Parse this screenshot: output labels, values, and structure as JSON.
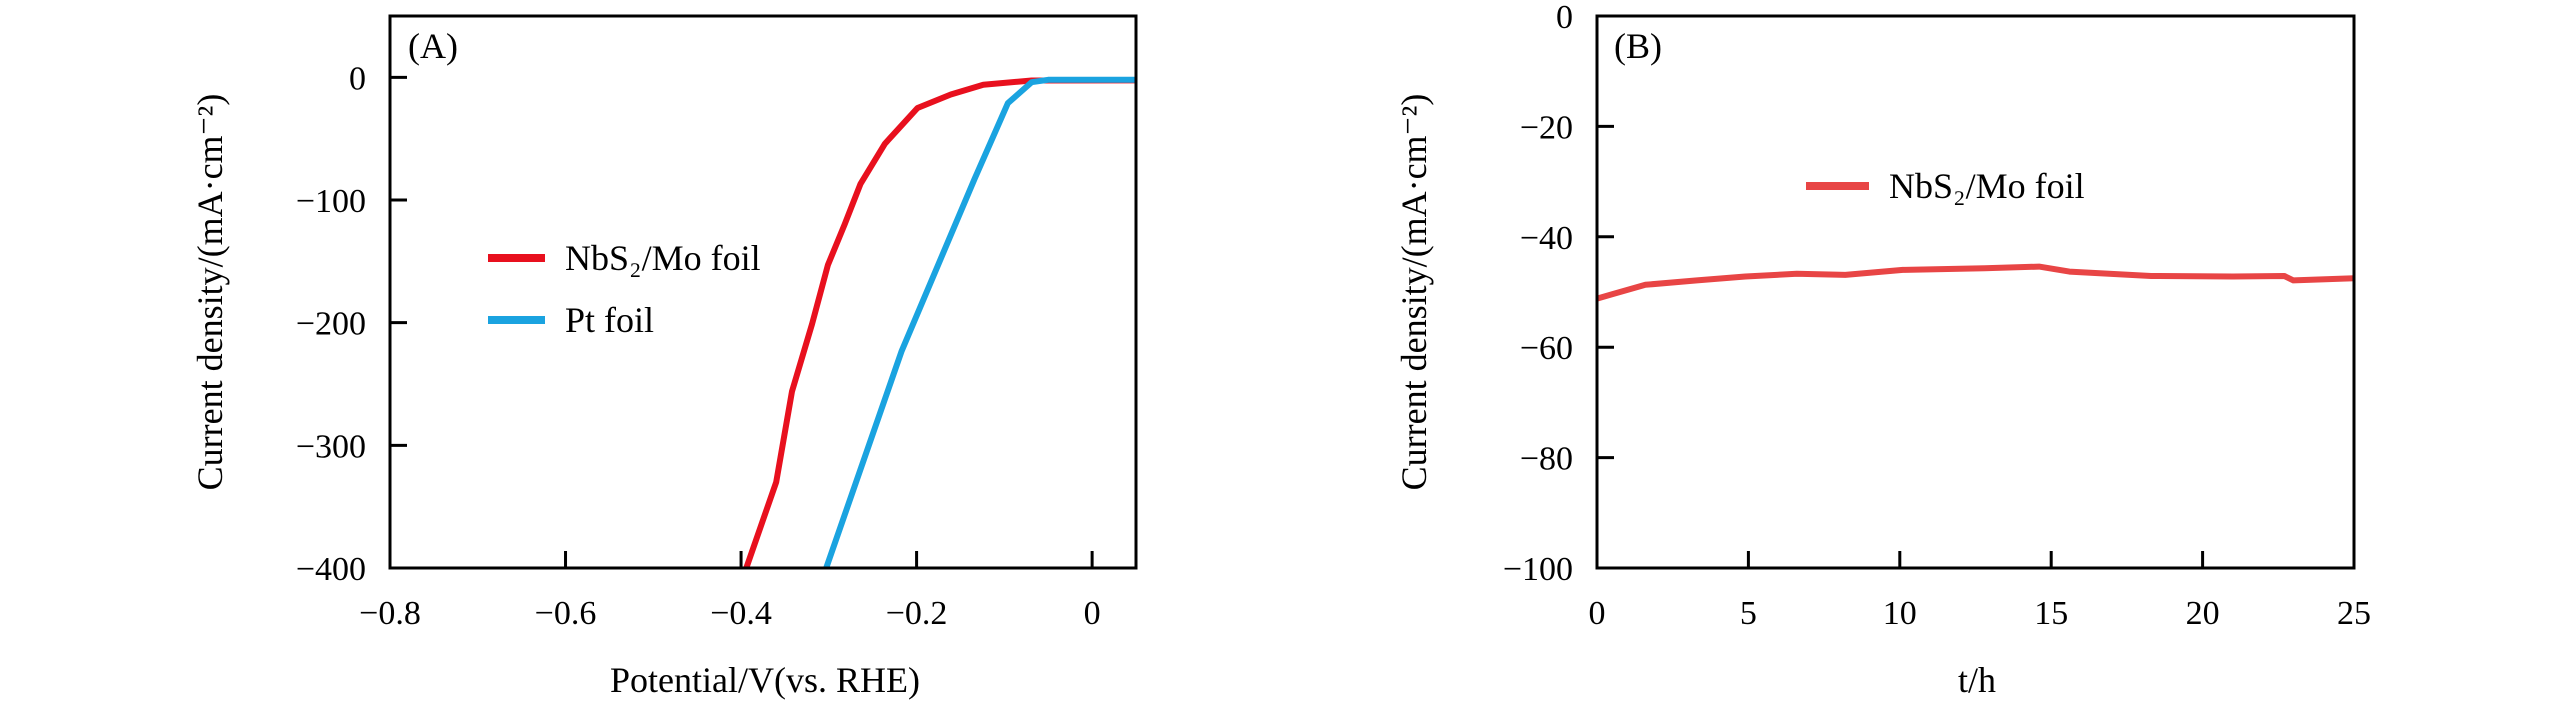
{
  "chart_data": [
    {
      "type": "line",
      "panel_label": "(A)",
      "xlabel": "Potential/V(vs. RHE)",
      "ylabel": "Current density/(mA·cm⁻²)",
      "xlim": [
        -0.8,
        0.05
      ],
      "ylim": [
        -400,
        50
      ],
      "xticks": [
        -0.8,
        -0.6,
        -0.4,
        -0.2,
        0
      ],
      "xtick_labels": [
        "−0.8",
        "−0.6",
        "−0.4",
        "−0.2",
        "0"
      ],
      "yticks": [
        0,
        -100,
        -200,
        -300,
        -400
      ],
      "ytick_labels": [
        "0",
        "−100",
        "−200",
        "−300",
        "−400"
      ],
      "legend_position": "center-left",
      "series": [
        {
          "name": "NbS₂/Mo foil",
          "color": "#e8101e",
          "x": [
            -0.394,
            -0.36,
            -0.342,
            -0.319,
            -0.301,
            -0.282,
            -0.264,
            -0.236,
            -0.199,
            -0.161,
            -0.124,
            -0.069,
            0.05
          ],
          "y": [
            -400,
            -330,
            -256,
            -201,
            -153,
            -120,
            -87,
            -54,
            -25,
            -14,
            -6,
            -2.6,
            -2.5
          ]
        },
        {
          "name": "Pt foil",
          "color": "#1aa3e0",
          "x": [
            -0.303,
            -0.217,
            -0.134,
            -0.096,
            -0.069,
            -0.05,
            0.05
          ],
          "y": [
            -400,
            -223,
            -83,
            -21,
            -4,
            -2,
            -2
          ]
        }
      ]
    },
    {
      "type": "line",
      "panel_label": "(B)",
      "xlabel": "t/h",
      "ylabel": "Current density/(mA·cm⁻²)",
      "xlim": [
        0,
        25
      ],
      "ylim": [
        -100,
        0
      ],
      "xticks": [
        0,
        5,
        10,
        15,
        20,
        25
      ],
      "xtick_labels": [
        "0",
        "5",
        "10",
        "15",
        "20",
        "25"
      ],
      "yticks": [
        0,
        -20,
        -40,
        -60,
        -80,
        -100
      ],
      "ytick_labels": [
        "0",
        "−20",
        "−40",
        "−60",
        "−80",
        "−100"
      ],
      "legend_position": "upper-center",
      "series": [
        {
          "name": "NbS₂/Mo foil",
          "color": "#e84545",
          "x": [
            0,
            0.5,
            1.6,
            3.3,
            4.9,
            6.6,
            8.2,
            10.1,
            12.8,
            14.6,
            15.6,
            18.3,
            21,
            22.7,
            23,
            25
          ],
          "y": [
            -51.2,
            -50.4,
            -48.7,
            -47.9,
            -47.2,
            -46.7,
            -46.9,
            -46,
            -45.7,
            -45.4,
            -46.3,
            -47.1,
            -47.2,
            -47.1,
            -47.9,
            -47.5
          ]
        }
      ]
    }
  ]
}
